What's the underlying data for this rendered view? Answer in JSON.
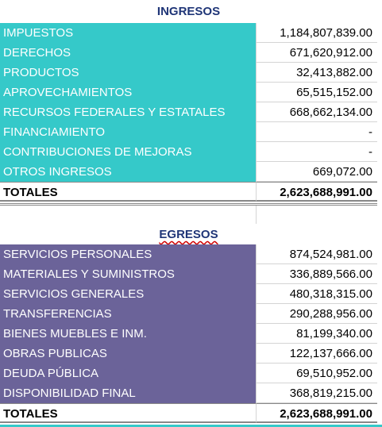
{
  "ingresos": {
    "title": "INGRESOS",
    "rows": [
      [
        "IMPUESTOS",
        "1,184,807,839.00"
      ],
      [
        "DERECHOS",
        "671,620,912.00"
      ],
      [
        "PRODUCTOS",
        "32,413,882.00"
      ],
      [
        "APROVECHAMIENTOS",
        "65,515,152.00"
      ],
      [
        "RECURSOS FEDERALES Y ESTATALES",
        "668,662,134.00"
      ],
      [
        "FINANCIAMIENTO",
        "-"
      ],
      [
        "CONTRIBUCIONES DE MEJORAS",
        "-"
      ],
      [
        "OTROS INGRESOS",
        "669,072.00"
      ]
    ],
    "total": [
      "TOTALES",
      "2,623,688,991.00"
    ]
  },
  "egresos": {
    "title": "EGRESOS",
    "rows": [
      [
        "SERVICIOS PERSONALES",
        "874,524,981.00"
      ],
      [
        "MATERIALES Y SUMINISTROS",
        "336,889,566.00"
      ],
      [
        "SERVICIOS GENERALES",
        "480,318,315.00"
      ],
      [
        "TRANSFERENCIAS",
        "290,288,956.00"
      ],
      [
        "BIENES MUEBLES E INM.",
        "81,199,340.00"
      ],
      [
        "OBRAS PUBLICAS",
        "122,137,666.00"
      ],
      [
        "DEUDA PÚBLICA",
        "69,510,952.00"
      ],
      [
        "DISPONIBILIDAD FINAL",
        "368,819,215.00"
      ]
    ],
    "total": [
      "TOTALES",
      "2,623,688,991.00"
    ]
  }
}
